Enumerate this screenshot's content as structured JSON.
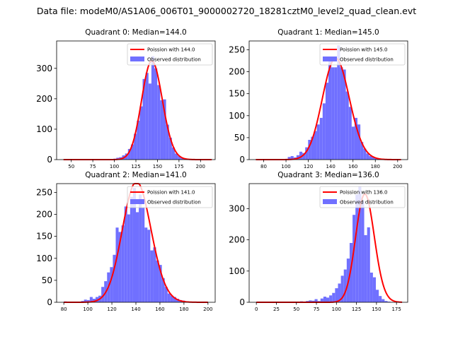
{
  "figure": {
    "suptitle": "Data file: modeM0/AS1A06_006T01_9000002720_18281cztM0_level2_quad_clean.evt"
  },
  "colors": {
    "bar": "#7070ff",
    "curve": "#ff0000",
    "axis": "#000000"
  },
  "legend": {
    "observed_label": "Observed distribution"
  },
  "chart_data": [
    {
      "type": "bar",
      "title": "Quadrant 0: Median=144.0",
      "legend_poisson": "Poission with 144.0",
      "mean": 144.0,
      "xlim": [
        33,
        217
      ],
      "ylim": [
        0,
        390
      ],
      "xticks": [
        50,
        75,
        100,
        125,
        150,
        175,
        200
      ],
      "yticks": [
        0,
        100,
        200,
        300
      ],
      "bin_edges_start": 41,
      "bin_width": 3.4,
      "values": [
        0,
        0,
        0,
        0,
        0,
        0,
        0,
        0,
        0,
        0,
        0,
        0,
        0,
        0,
        0,
        2,
        1,
        3,
        6,
        8,
        14,
        20,
        35,
        50,
        85,
        128,
        175,
        265,
        285,
        250,
        340,
        300,
        245,
        195,
        198,
        115,
        72,
        40,
        20,
        12,
        5,
        2,
        1,
        0,
        0,
        0,
        0,
        0,
        0,
        0,
        0
      ],
      "curve_range": [
        41,
        213
      ]
    },
    {
      "type": "bar",
      "title": "Quadrant 1: Median=145.0",
      "legend_poisson": "Poission with 145.0",
      "mean": 145.0,
      "xlim": [
        67,
        209
      ],
      "ylim": [
        0,
        270
      ],
      "xticks": [
        80,
        100,
        120,
        140,
        160,
        180,
        200
      ],
      "yticks": [
        0,
        50,
        100,
        150,
        200,
        250
      ],
      "bin_edges_start": 73,
      "bin_width": 2.6,
      "values": [
        0,
        0,
        0,
        0,
        0,
        0,
        0,
        0,
        0,
        0,
        0,
        6,
        8,
        5,
        10,
        18,
        15,
        28,
        45,
        52,
        65,
        80,
        95,
        128,
        175,
        230,
        210,
        210,
        260,
        210,
        205,
        155,
        120,
        75,
        95,
        80,
        40,
        25,
        14,
        8,
        6,
        3,
        2,
        1,
        0,
        0,
        0,
        0,
        0,
        0
      ],
      "curve_range": [
        73,
        203
      ]
    },
    {
      "type": "bar",
      "title": "Quadrant 2: Median=141.0",
      "legend_poisson": "Poission with 141.0",
      "mean": 141.0,
      "xlim": [
        74,
        206
      ],
      "ylim": [
        0,
        270
      ],
      "xticks": [
        80,
        100,
        120,
        140,
        160,
        180,
        200
      ],
      "yticks": [
        0,
        50,
        100,
        150,
        200,
        250
      ],
      "bin_edges_start": 80,
      "bin_width": 2.4,
      "values": [
        2,
        0,
        0,
        0,
        0,
        0,
        3,
        6,
        5,
        12,
        8,
        12,
        15,
        35,
        48,
        68,
        80,
        108,
        170,
        160,
        175,
        218,
        200,
        240,
        260,
        205,
        245,
        215,
        170,
        165,
        118,
        125,
        95,
        85,
        55,
        35,
        20,
        15,
        12,
        8,
        5,
        4,
        2,
        1,
        0,
        0,
        0,
        0,
        0,
        0
      ],
      "curve_range": [
        80,
        200
      ]
    },
    {
      "type": "bar",
      "title": "Quadrant 3: Median=136.0",
      "legend_poisson": "Poission with 136.0",
      "mean": 136.0,
      "xlim": [
        -9,
        189
      ],
      "ylim": [
        0,
        380
      ],
      "xticks": [
        0,
        25,
        50,
        75,
        100,
        125,
        150,
        175
      ],
      "yticks": [
        0,
        100,
        200,
        300
      ],
      "bin_edges_start": 0,
      "bin_width": 3.64,
      "values": [
        0,
        0,
        0,
        0,
        0,
        0,
        0,
        0,
        0,
        0,
        0,
        0,
        0,
        0,
        0,
        3,
        2,
        4,
        6,
        5,
        10,
        4,
        12,
        18,
        15,
        22,
        30,
        45,
        60,
        85,
        105,
        140,
        190,
        280,
        345,
        370,
        325,
        215,
        240,
        95,
        80,
        40,
        20,
        10,
        4,
        2,
        1,
        0,
        0,
        0
      ],
      "curve_range": [
        0,
        182
      ]
    }
  ]
}
